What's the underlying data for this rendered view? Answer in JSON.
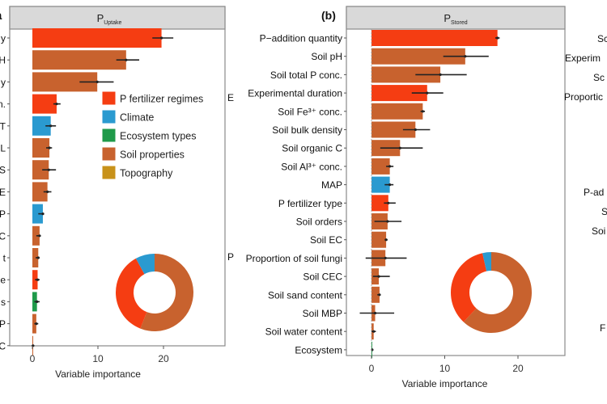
{
  "colors": {
    "P fertilizer regimes": "#f53d12",
    "Climate": "#2a9ad0",
    "Ecosystem types": "#1f9a4a",
    "Soil properties": "#c8622e",
    "Topography": "#c8921a",
    "strip": "#d9d9d9",
    "error": "#222222"
  },
  "panel_letters": [
    "a",
    "(b)"
  ],
  "fragments": {
    "left_edge": [
      "E",
      "P"
    ],
    "right_edge": [
      "Sc",
      "Experim",
      "Sc",
      "Proportic",
      "P-ad",
      "S",
      "Soi",
      "F"
    ]
  },
  "chart_data": [
    {
      "type": "bar",
      "orientation": "horizontal",
      "strip_title": "P",
      "strip_subscript": "Uptake",
      "xlabel": "Variable importance",
      "xlim": [
        -2.5,
        29
      ],
      "xticks": [
        0,
        10,
        20
      ],
      "grid": false,
      "categories": [
        "y",
        "H",
        "y",
        "n.",
        "T",
        "L",
        "S",
        "E",
        "P",
        "C",
        "t",
        "e",
        "s",
        "P",
        "C"
      ],
      "values": [
        19.7,
        14.3,
        9.9,
        3.7,
        2.8,
        2.6,
        2.5,
        2.3,
        1.6,
        1.1,
        0.9,
        0.8,
        0.7,
        0.6,
        0.1
      ],
      "errors": [
        [
          18.3,
          21.5
        ],
        [
          12.8,
          16.3
        ],
        [
          7.2,
          12.4
        ],
        [
          3.2,
          4.3
        ],
        [
          2.0,
          3.6
        ],
        [
          2.1,
          3.0
        ],
        [
          1.5,
          3.6
        ],
        [
          1.7,
          2.9
        ],
        [
          0.9,
          1.8
        ],
        [
          0.6,
          1.3
        ],
        [
          0.5,
          1.1
        ],
        [
          0.4,
          1.1
        ],
        [
          0.3,
          1.1
        ],
        [
          0.3,
          0.9
        ],
        [
          -0.1,
          0.3
        ]
      ],
      "groups": [
        "P fertilizer regimes",
        "Soil properties",
        "Soil properties",
        "P fertilizer regimes",
        "Climate",
        "Soil properties",
        "Soil properties",
        "Soil properties",
        "Climate",
        "Soil properties",
        "Soil properties",
        "P fertilizer regimes",
        "Ecosystem types",
        "Soil properties",
        "Soil properties"
      ],
      "legend": {
        "placement": "top-right",
        "entries": [
          "P fertilizer regimes",
          "Climate",
          "Ecosystem types",
          "Soil properties",
          "Topography"
        ]
      },
      "donut": {
        "labels": [
          "Soil properties",
          "P fertilizer regimes",
          "Climate"
        ],
        "values": [
          0.56,
          0.36,
          0.08
        ]
      }
    },
    {
      "type": "bar",
      "orientation": "horizontal",
      "strip_title": "P",
      "strip_subscript": "Stored",
      "xlabel": "Variable importance",
      "xlim": [
        -3.5,
        23.5
      ],
      "xticks": [
        0,
        10,
        20
      ],
      "grid": false,
      "categories": [
        "P−addition quantity",
        "Soil pH",
        "Soil total P conc.",
        "Experimental duration",
        "Soil Fe³⁺ conc.",
        "Soil bulk density",
        "Soil organic C",
        "Soil Al³⁺ conc.",
        "MAP",
        "P fertilizer type",
        "Soil orders",
        "Soil EC",
        "Proportion of soil fungi",
        "Soil CEC",
        "Soil sand content",
        "Soil MBP",
        "Soil water content",
        "Ecosystem"
      ],
      "values": [
        17.2,
        12.8,
        9.4,
        7.6,
        7.0,
        6.0,
        3.9,
        2.5,
        2.5,
        2.3,
        2.2,
        2.0,
        1.9,
        1.0,
        1.1,
        0.5,
        0.3,
        0.1
      ],
      "errors": [
        [
          16.9,
          17.5
        ],
        [
          9.8,
          16.0
        ],
        [
          6.0,
          13.0
        ],
        [
          5.5,
          9.8
        ],
        [
          6.7,
          7.3
        ],
        [
          4.3,
          8.0
        ],
        [
          1.2,
          7.0
        ],
        [
          2.0,
          3.0
        ],
        [
          1.8,
          3.0
        ],
        [
          1.7,
          3.3
        ],
        [
          0.4,
          4.1
        ],
        [
          1.8,
          2.2
        ],
        [
          -0.8,
          4.8
        ],
        [
          0.2,
          2.5
        ],
        [
          0.8,
          1.2
        ],
        [
          -1.6,
          3.1
        ],
        [
          0.0,
          0.6
        ],
        [
          0.0,
          0.2
        ]
      ],
      "groups": [
        "P fertilizer regimes",
        "Soil properties",
        "Soil properties",
        "P fertilizer regimes",
        "Soil properties",
        "Soil properties",
        "Soil properties",
        "Soil properties",
        "Climate",
        "P fertilizer regimes",
        "Soil properties",
        "Soil properties",
        "Soil properties",
        "Soil properties",
        "Soil properties",
        "Soil properties",
        "Soil properties",
        "Ecosystem types"
      ],
      "donut": {
        "labels": [
          "Soil properties",
          "P fertilizer regimes",
          "Climate"
        ],
        "values": [
          0.62,
          0.345,
          0.035
        ]
      }
    }
  ]
}
